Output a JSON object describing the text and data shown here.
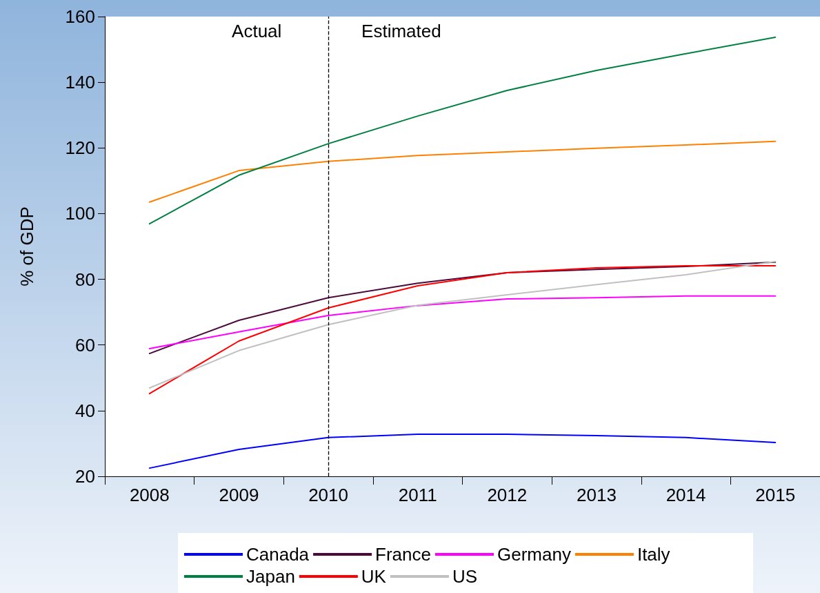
{
  "chart_data": {
    "type": "line",
    "ylabel": "% of GDP",
    "categories": [
      "2008",
      "2009",
      "2010",
      "2011",
      "2012",
      "2013",
      "2014",
      "2015"
    ],
    "ylim": [
      20,
      160
    ],
    "yticks": [
      20,
      40,
      60,
      80,
      100,
      120,
      140,
      160
    ],
    "grid": false,
    "legend": "bottom",
    "marker": "none",
    "line_style": "solid",
    "ref_lines": [
      {
        "axis": "x",
        "value": "2010",
        "label": null,
        "line_style": "dashed",
        "color": "#000000"
      }
    ],
    "annotations": [
      "Actual",
      "Estimated"
    ],
    "series": [
      {
        "name": "Canada",
        "color": "#0000ff",
        "values": [
          22.5,
          28.2,
          31.8,
          32.8,
          32.8,
          32.4,
          31.8,
          30.3
        ]
      },
      {
        "name": "France",
        "color": "#4b0a3c",
        "values": [
          57.4,
          67.5,
          74.4,
          78.8,
          82,
          83,
          83.9,
          85.2
        ]
      },
      {
        "name": "Germany",
        "color": "#ff00ff",
        "values": [
          58.9,
          64,
          69,
          72,
          74,
          74.4,
          74.9,
          74.9
        ]
      },
      {
        "name": "Italy",
        "color": "#ff8000",
        "values": [
          103.5,
          113.1,
          115.9,
          117.7,
          118.8,
          119.9,
          120.9,
          122
        ]
      },
      {
        "name": "Japan",
        "color": "#008040",
        "values": [
          96.9,
          111.7,
          121.3,
          129.7,
          137.5,
          143.6,
          148.7,
          153.7
        ]
      },
      {
        "name": "UK",
        "color": "#ff0000",
        "values": [
          45.2,
          61.2,
          71.3,
          78,
          82,
          83.5,
          84.1,
          84.1
        ]
      },
      {
        "name": "US",
        "color": "#c0c0c0",
        "values": [
          46.9,
          58.3,
          66.2,
          72.1,
          75.3,
          78.4,
          81.4,
          85.4
        ]
      }
    ]
  }
}
